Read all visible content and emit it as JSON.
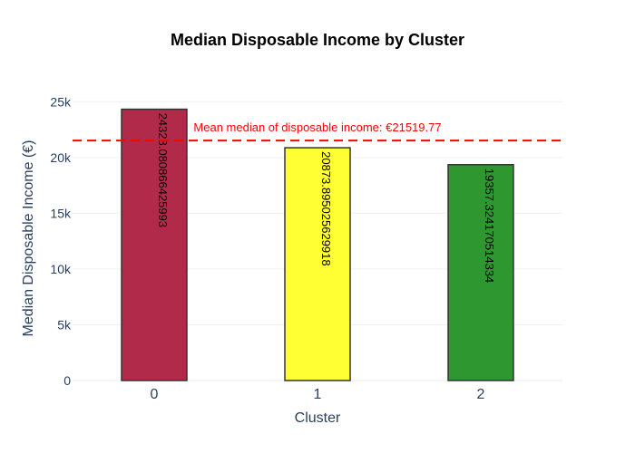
{
  "chart_data": {
    "type": "bar",
    "title": "Median Disposable Income by Cluster",
    "xlabel": "Cluster",
    "ylabel": "Median Disposable Income (€)",
    "categories": [
      "0",
      "1",
      "2"
    ],
    "values": [
      24328.080866425993,
      20873.895025629918,
      19357.324170514334
    ],
    "data_labels": [
      "24328.080866425993",
      "20873.895025629918",
      "19357.324170514334"
    ],
    "colors": [
      "#b22a4a",
      "#ffff33",
      "#2f972f"
    ],
    "ylim": [
      0,
      26000
    ],
    "y_ticks": [
      0,
      5000,
      10000,
      15000,
      20000,
      25000
    ],
    "y_tick_labels": [
      "0",
      "5k",
      "10k",
      "15k",
      "20k",
      "25k"
    ],
    "reference_line": {
      "value": 21519.77,
      "label": "Mean median of disposable income: €21519.77",
      "color": "#ff0000",
      "style": "dashed"
    },
    "grid": true,
    "legend": false
  }
}
